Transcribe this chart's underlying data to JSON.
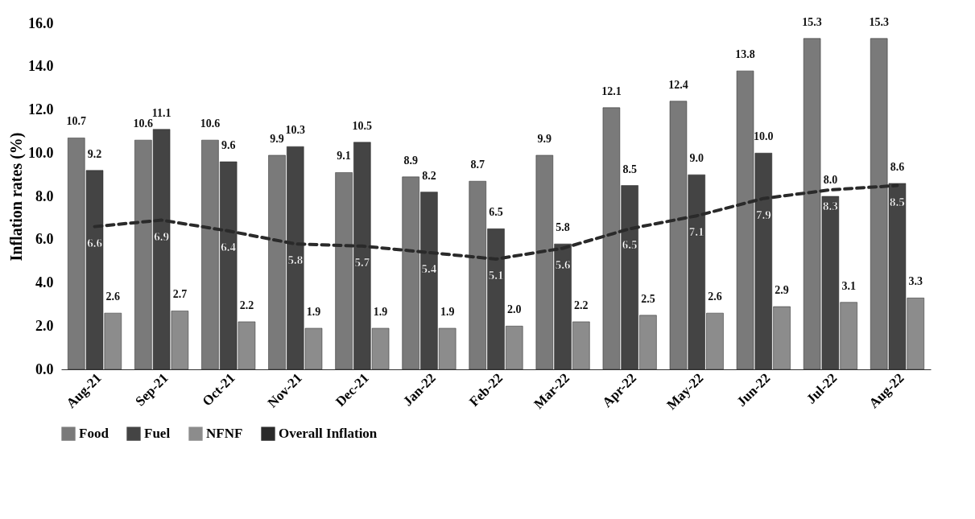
{
  "chart_data": {
    "type": "bar",
    "ylabel": "Inflation rates (%)",
    "categories": [
      "Aug-21",
      "Sep-21",
      "Oct-21",
      "Nov-21",
      "Dec-21",
      "Jan-22",
      "Feb-22",
      "Mar-22",
      "Apr-22",
      "May-22",
      "Jun-22",
      "Jul-22",
      "Aug-22"
    ],
    "series": [
      {
        "name": "Food",
        "color": "#7a7a7a",
        "values": [
          10.7,
          10.6,
          10.6,
          9.9,
          9.1,
          8.9,
          8.7,
          9.9,
          12.1,
          12.4,
          13.8,
          15.3,
          15.3
        ],
        "value_labels": [
          "10.7",
          "10.6",
          "10.6",
          "9.9",
          "9.1",
          "8.9",
          "8.7",
          "9.9",
          "12.1",
          "12.4",
          "13.8",
          "15.3",
          "15.3"
        ]
      },
      {
        "name": "Fuel",
        "color": "#444444",
        "values": [
          9.2,
          11.1,
          9.6,
          10.3,
          10.5,
          8.2,
          6.5,
          5.8,
          8.5,
          9.0,
          10.0,
          8.0,
          8.6
        ],
        "value_labels": [
          "9.2",
          "11.1",
          "9.6",
          "10.3",
          "10.5",
          "8.2",
          "6.5",
          "5.8",
          "8.5",
          "9.0",
          "10.0",
          "8.0",
          "8.6"
        ]
      },
      {
        "name": "NFNF",
        "color": "#8c8c8c",
        "values": [
          2.6,
          2.7,
          2.2,
          1.9,
          1.9,
          1.9,
          2.0,
          2.2,
          2.5,
          2.6,
          2.9,
          3.1,
          3.3
        ],
        "value_labels": [
          "2.6",
          "2.7",
          "2.2",
          "1.9",
          "1.9",
          "1.9",
          "2.0",
          "2.2",
          "2.5",
          "2.6",
          "2.9",
          "3.1",
          "3.3"
        ]
      },
      {
        "name": "Overall Inflation",
        "type": "line",
        "line_style": "dashed",
        "color": "#2a2a2a",
        "values": [
          6.6,
          6.9,
          6.4,
          5.8,
          5.7,
          5.4,
          5.1,
          5.6,
          6.5,
          7.1,
          7.9,
          8.3,
          8.5
        ],
        "value_labels": [
          "6.6",
          "6.9",
          "6.4",
          "5.8",
          "5.7",
          "5.4",
          "5.1",
          "5.6",
          "6.5",
          "7.1",
          "7.9",
          "8.3",
          "8.5"
        ]
      }
    ],
    "ylim": [
      0,
      16
    ],
    "yticks": [
      {
        "value": 0,
        "label": "0.0"
      },
      {
        "value": 2,
        "label": "2.0"
      },
      {
        "value": 4,
        "label": "4.0"
      },
      {
        "value": 6,
        "label": "6.0"
      },
      {
        "value": 8,
        "label": "8.0"
      },
      {
        "value": 10,
        "label": "10.0"
      },
      {
        "value": 12,
        "label": "12.0"
      },
      {
        "value": 14,
        "label": "14.0"
      },
      {
        "value": 16,
        "label": "16.0"
      }
    ],
    "legend": "bottom"
  }
}
